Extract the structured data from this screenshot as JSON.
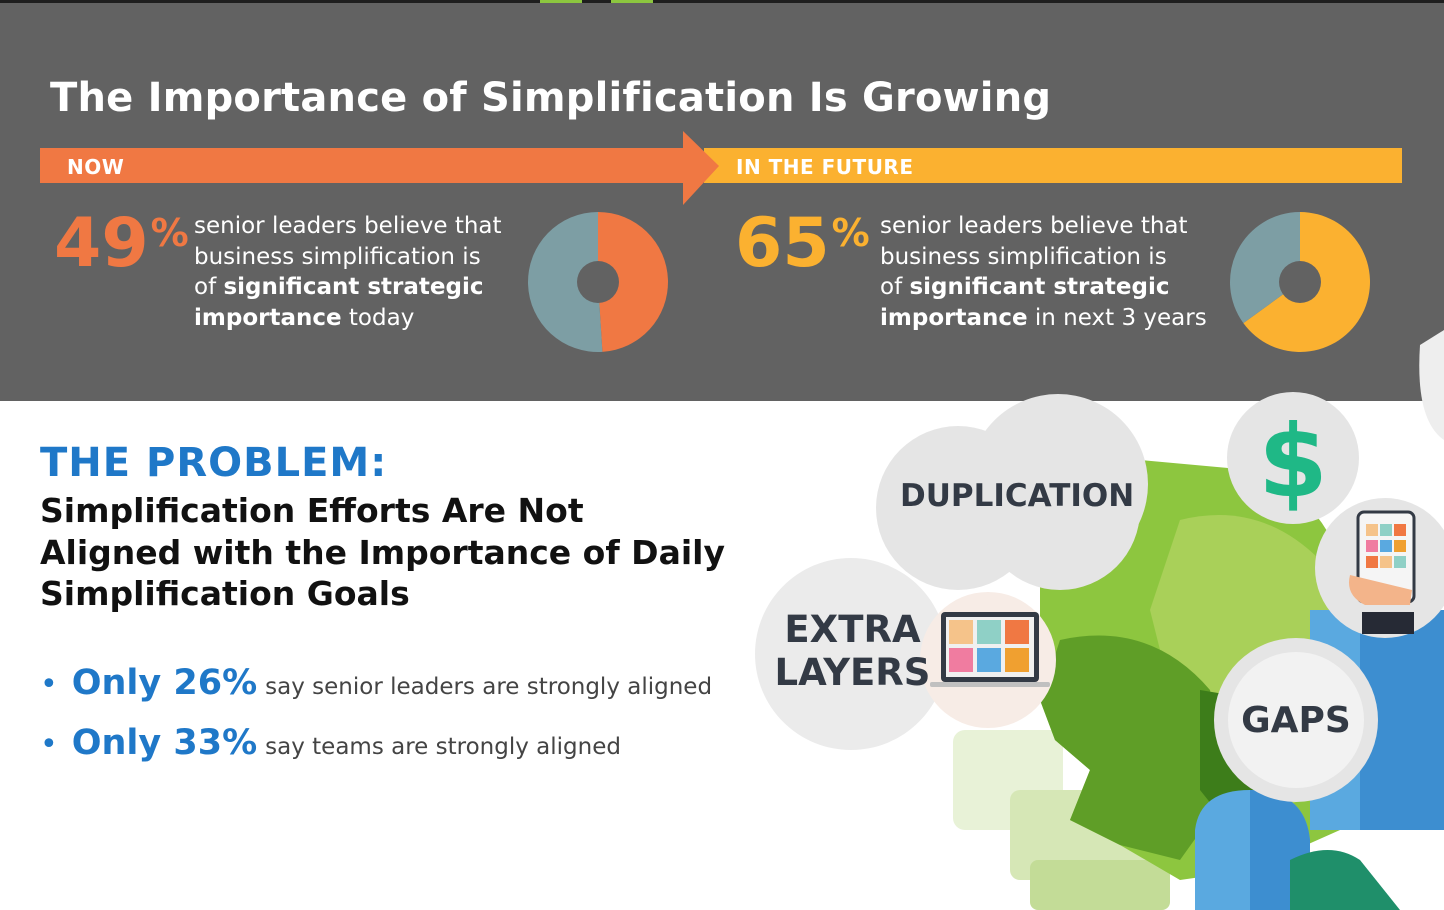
{
  "header": {
    "title": "The Importance of Simplification Is Growing"
  },
  "timeline": {
    "now_label": "NOW",
    "future_label": "IN THE FUTURE"
  },
  "stats": [
    {
      "value": "49",
      "unit": "%",
      "line1": "senior leaders believe that",
      "line2": "business simplification is",
      "line3_pre": "of ",
      "line3_bold": "significant strategic",
      "line4_bold": "importance",
      "line4_rest": " today"
    },
    {
      "value": "65",
      "unit": "%",
      "line1": "senior leaders believe that",
      "line2": "business simplification is",
      "line3_pre": "of ",
      "line3_bold": "significant strategic",
      "line4_bold": "importance",
      "line4_rest": " in next 3 years"
    }
  ],
  "chart_data": [
    {
      "type": "pie",
      "categories": [
        "significant strategic importance",
        "other"
      ],
      "values": [
        49,
        51
      ],
      "colors": [
        "#f07843",
        "#7d9ea4"
      ],
      "donut": true
    },
    {
      "type": "pie",
      "categories": [
        "significant strategic importance",
        "other"
      ],
      "values": [
        65,
        35
      ],
      "colors": [
        "#fbb130",
        "#7d9ea4"
      ],
      "donut": true
    }
  ],
  "problem": {
    "heading": "THE PROBLEM:",
    "subtitle": "Simplification Efforts Are Not Aligned with the Importance of Daily Simplification Goals",
    "bullets": [
      {
        "highlight": "Only 26%",
        "text": "say senior leaders are strongly aligned"
      },
      {
        "highlight": "Only 33%",
        "text": "say teams are strongly aligned"
      }
    ]
  },
  "illustration": {
    "bubbles": {
      "duplication": "DUPLICATION",
      "extra_layers_1": "EXTRA",
      "extra_layers_2": "LAYERS",
      "gaps": "GAPS"
    },
    "dollar": "$"
  },
  "colors": {
    "panel": "#626262",
    "orange": "#f07843",
    "yellow": "#fbb130",
    "teal_gray": "#7d9ea4",
    "blue": "#1f78c8",
    "green": "#8dc63f"
  }
}
